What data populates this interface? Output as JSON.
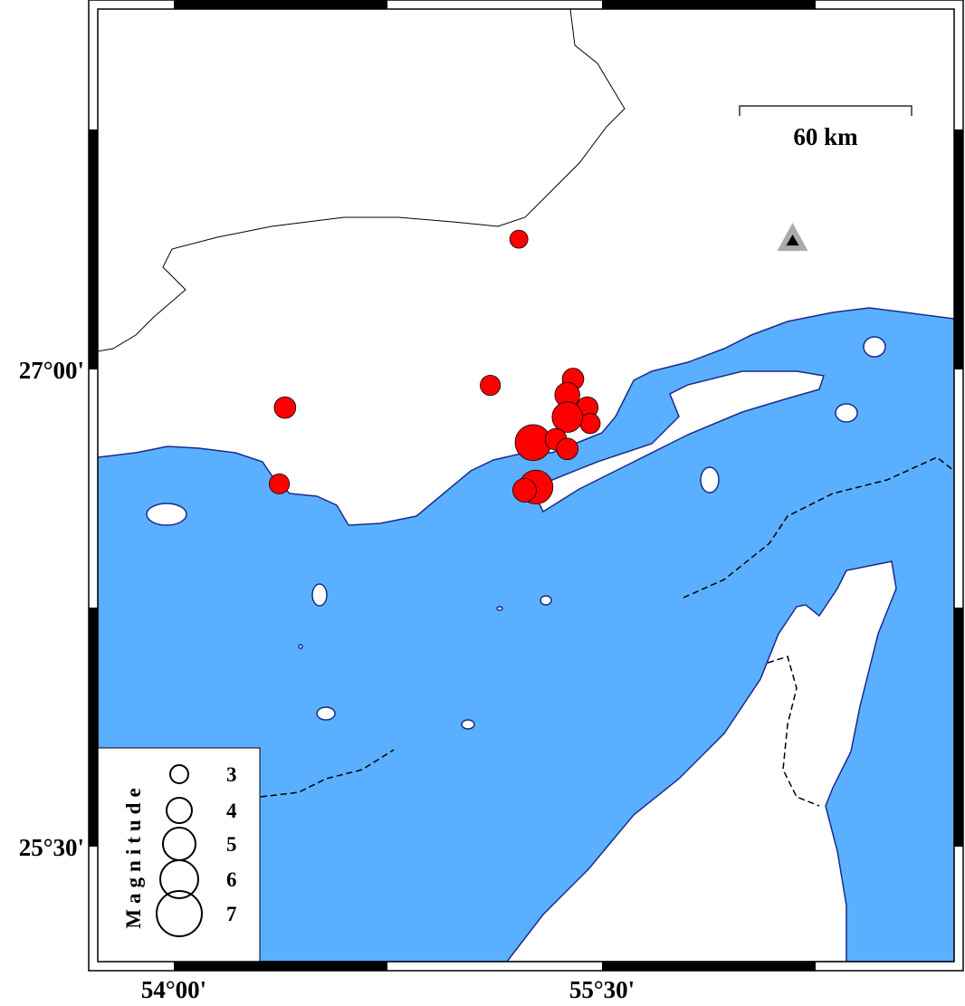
{
  "map": {
    "colors": {
      "sea": "#5AB0FF",
      "land": "#FFFFFF",
      "coast": "#1A2A8A",
      "event": "#FF0000",
      "station": "#AAAAAA"
    },
    "lon_ticks": [
      {
        "value": 54.0,
        "label": "54°00'"
      },
      {
        "value": 55.5,
        "label": "55°30'"
      }
    ],
    "lat_ticks": [
      {
        "value": 27.0,
        "label": "27°00'"
      },
      {
        "value": 25.5,
        "label": "25°30'"
      }
    ],
    "scale_bar": {
      "label": "60 km"
    },
    "legend": {
      "title": "Magnitude",
      "entries": [
        {
          "mag": 3,
          "label": "3"
        },
        {
          "mag": 4,
          "label": "4"
        },
        {
          "mag": 5,
          "label": "5"
        },
        {
          "mag": 6,
          "label": "6"
        },
        {
          "mag": 7,
          "label": "7"
        }
      ]
    },
    "station": {
      "lon": 56.17,
      "lat": 27.41,
      "icon": "triangle-station-icon"
    },
    "events": [
      {
        "lon": 55.21,
        "lat": 27.41,
        "mag": 3.0
      },
      {
        "lon": 54.39,
        "lat": 26.88,
        "mag": 3.5
      },
      {
        "lon": 54.37,
        "lat": 26.64,
        "mag": 3.3
      },
      {
        "lon": 55.11,
        "lat": 26.95,
        "mag": 3.3
      },
      {
        "lon": 55.4,
        "lat": 26.97,
        "mag": 3.5
      },
      {
        "lon": 55.38,
        "lat": 26.92,
        "mag": 4.0
      },
      {
        "lon": 55.45,
        "lat": 26.88,
        "mag": 3.5
      },
      {
        "lon": 55.46,
        "lat": 26.83,
        "mag": 3.3
      },
      {
        "lon": 55.38,
        "lat": 26.85,
        "mag": 4.8
      },
      {
        "lon": 55.26,
        "lat": 26.77,
        "mag": 5.6
      },
      {
        "lon": 55.34,
        "lat": 26.78,
        "mag": 3.5
      },
      {
        "lon": 55.38,
        "lat": 26.75,
        "mag": 3.5
      },
      {
        "lon": 55.27,
        "lat": 26.63,
        "mag": 5.3
      },
      {
        "lon": 55.23,
        "lat": 26.62,
        "mag": 3.8
      }
    ]
  }
}
